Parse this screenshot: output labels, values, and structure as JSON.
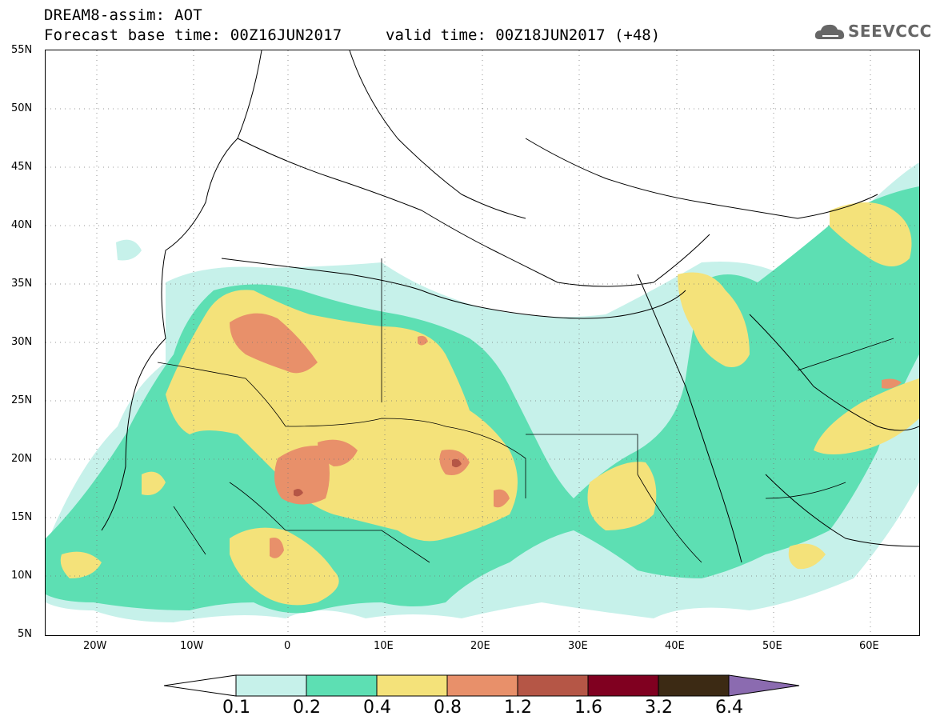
{
  "header": {
    "model_line": "DREAM8-assim: AOT",
    "forecast_line": "Forecast base time: 00Z16JUN2017",
    "valid_line": "valid time: 00Z18JUN2017 (+48)"
  },
  "logo": {
    "text": "SEEVCCC",
    "icon": "cloud-logo-icon"
  },
  "map": {
    "lat_labels": [
      "55N",
      "50N",
      "45N",
      "40N",
      "35N",
      "30N",
      "25N",
      "20N",
      "15N",
      "10N",
      "5N"
    ],
    "lon_labels": [
      "20W",
      "10W",
      "0",
      "10E",
      "20E",
      "30E",
      "40E",
      "50E",
      "60E"
    ],
    "lat_range": [
      5,
      55
    ],
    "lon_range": [
      -25,
      65
    ],
    "grid": "dotted"
  },
  "colorbar": {
    "labels": [
      "0.1",
      "0.2",
      "0.4",
      "0.8",
      "1.2",
      "1.6",
      "3.2",
      "6.4"
    ],
    "colors": [
      "#c6f1ea",
      "#5ddfb3",
      "#f4e27a",
      "#e8906a",
      "#b55646",
      "#800020",
      "#3c2a14",
      "#8b6bb0"
    ]
  }
}
